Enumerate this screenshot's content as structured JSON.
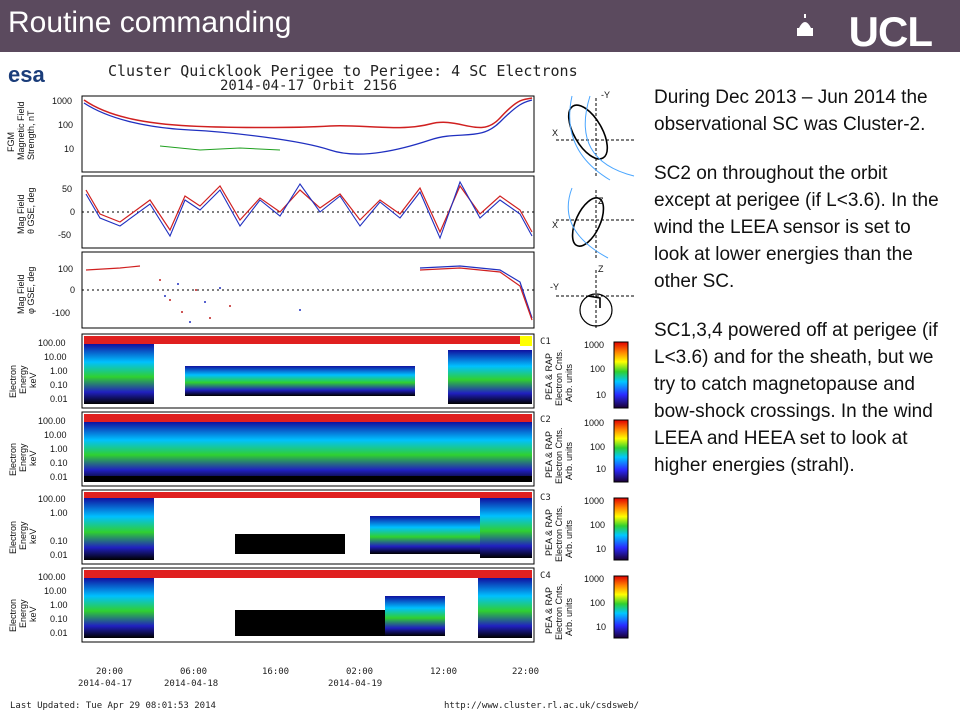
{
  "header": {
    "title": "Routine commanding",
    "logo": "UCL"
  },
  "figure": {
    "agency_logo": "esa",
    "title": "Cluster Quicklook Perigee to Perigee: 4 SC Electrons",
    "subtitle": "2014-04-17 Orbit 2156",
    "panels": {
      "fgm_label": [
        "FGM",
        "Magnetic Field",
        "Strength, nT"
      ],
      "fgm_ticks": [
        "1000",
        "100",
        "10"
      ],
      "theta_label": [
        "Mag Field",
        "θ GSE, deg"
      ],
      "theta_ticks": [
        "50",
        "0",
        "-50"
      ],
      "phi_label": [
        "Mag Field",
        "φ GSE, deg"
      ],
      "phi_ticks": [
        "100",
        "0",
        "-100"
      ],
      "electron_label": [
        "Electron",
        "Energy",
        "keV"
      ],
      "energy_ticks": [
        "100.00",
        "10.00",
        "1.00",
        "0.10",
        "0.01"
      ],
      "colorbar_label": [
        "PEA & RAP",
        "Electron Cnts.",
        "Arb. units"
      ],
      "colorbar_ticks": [
        "1000",
        "100",
        "10"
      ],
      "spacecraft": [
        "C1",
        "C2",
        "C3",
        "C4"
      ]
    },
    "time_axis": {
      "ticks": [
        "20:00",
        "06:00",
        "16:00",
        "02:00",
        "12:00",
        "22:00"
      ],
      "dates": [
        "2014-04-17",
        "2014-04-18",
        "2014-04-19"
      ]
    },
    "orbit_axes": [
      {
        "h": "X",
        "v": "-Y"
      },
      {
        "h": "X",
        "v": "Z"
      },
      {
        "h": "-Y",
        "v": "Z"
      }
    ],
    "footer_left": "Last Updated: Tue Apr 29 08:01:53 2014",
    "footer_right": "http://www.cluster.rl.ac.uk/csdsweb/"
  },
  "text": {
    "p1": "During Dec 2013 – Jun 2014 the observational SC was Cluster-2.",
    "p2": "SC2 on throughout the orbit except at perigee (if L<3.6). In the wind the LEEA sensor is set to look at lower energies than the other SC.",
    "p3": "SC1,3,4 powered off at perigee (if L<3.6) and for the sheath, but we try to catch magnetopause and bow-shock crossings. In the wind LEEA and HEEA set to look at higher energies (strahl)."
  },
  "colors": {
    "header_bg": "#5b4a5e",
    "text": "#111111"
  }
}
